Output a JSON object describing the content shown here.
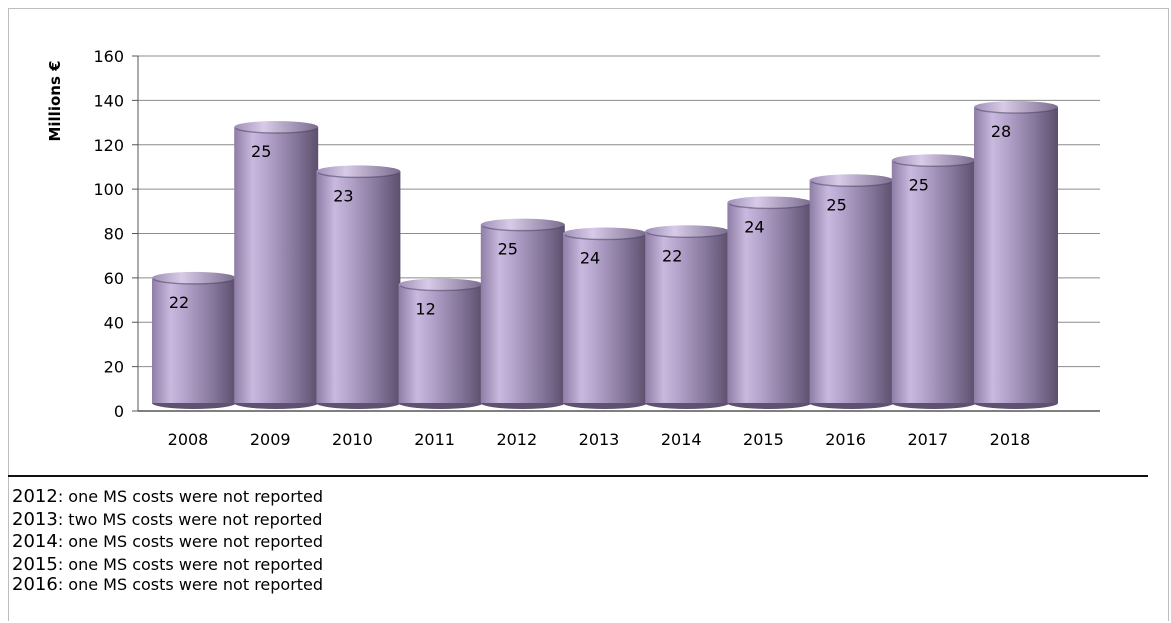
{
  "chart_data": {
    "type": "bar",
    "title": "",
    "xlabel": "",
    "ylabel": "Millions €",
    "ylim": [
      0,
      160
    ],
    "yticks": [
      0,
      20,
      40,
      60,
      80,
      100,
      120,
      140,
      160
    ],
    "grid": true,
    "legend": "none",
    "categories": [
      "2008",
      "2009",
      "2010",
      "2011",
      "2012",
      "2013",
      "2014",
      "2015",
      "2016",
      "2017",
      "2018"
    ],
    "values": [
      60,
      128,
      108,
      57,
      84,
      80,
      81,
      94,
      104,
      113,
      137
    ],
    "data_labels": [
      "22",
      "25",
      "23",
      "12",
      "25",
      "24",
      "22",
      "24",
      "25",
      "25",
      "28"
    ],
    "colors": {
      "bar_light": "#c7b6dd",
      "bar_mid": "#9b8ab1",
      "bar_dark": "#5e5270",
      "grid": "#8c8c8c",
      "axis": "#555555"
    }
  },
  "notes": [
    {
      "year": "2012",
      "text": ": one MS costs were not reported"
    },
    {
      "year": "2013",
      "text": ": two MS costs were not reported"
    },
    {
      "year": "2014",
      "text": ": one MS costs were not reported"
    },
    {
      "year": "2015",
      "text": ": one MS costs were not reported"
    },
    {
      "year": "2016",
      "text": ": one MS costs were not reported"
    }
  ]
}
